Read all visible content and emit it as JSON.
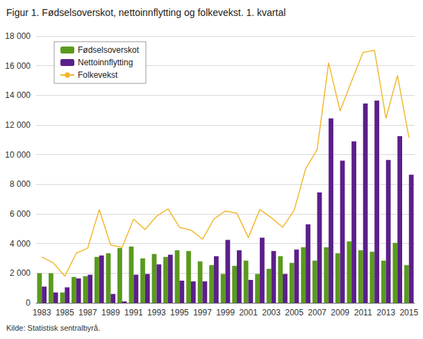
{
  "chart_data": {
    "type": "bar",
    "title": "Figur 1. Fødselsoverskot, nettoinnflytting og folkevekst. 1. kvartal",
    "source": "Kilde: Statistisk sentralbyrå.",
    "categories": [
      "1983",
      null,
      "1985",
      null,
      "1987",
      null,
      "1989",
      null,
      "1991",
      null,
      "1993",
      null,
      "1995",
      null,
      "1997",
      null,
      "1999",
      null,
      "2001",
      null,
      "2003",
      null,
      "2005",
      null,
      "2007",
      null,
      "2009",
      null,
      "2011",
      null,
      "2013",
      null,
      "2015"
    ],
    "series": [
      {
        "name": "Fødselsoverskot",
        "type": "bar",
        "color": "#5a9a1e",
        "values": [
          2000,
          2000,
          700,
          1750,
          1800,
          3100,
          3350,
          3700,
          3800,
          3000,
          3300,
          3100,
          3550,
          3500,
          2800,
          2550,
          1950,
          2500,
          2850,
          1950,
          2300,
          3150,
          2700,
          3750,
          2850,
          3750,
          3350,
          4150,
          3550,
          3450,
          2850,
          4050,
          2550
        ]
      },
      {
        "name": "Nettoinnflytting",
        "type": "bar",
        "color": "#5b1f8a",
        "values": [
          1100,
          700,
          1050,
          1650,
          1900,
          3200,
          600,
          100,
          1900,
          1950,
          2600,
          3250,
          1500,
          1450,
          1450,
          3150,
          4250,
          3550,
          1550,
          4400,
          3500,
          1950,
          3600,
          5300,
          7450,
          12450,
          9600,
          10900,
          13450,
          13650,
          9650,
          11250,
          8650
        ]
      },
      {
        "name": "Folkevekst",
        "type": "line",
        "color": "#f1b82d",
        "values": [
          3100,
          2700,
          1800,
          3350,
          3700,
          6300,
          3900,
          3750,
          5650,
          4950,
          5850,
          6350,
          5100,
          4900,
          4300,
          5650,
          6200,
          6050,
          4400,
          6300,
          5750,
          5100,
          6250,
          9050,
          10350,
          16200,
          12950,
          14950,
          16900,
          17050,
          12450,
          15350,
          11150
        ]
      }
    ],
    "ylim": [
      0,
      18000
    ],
    "yticks": [
      0,
      {
        "value": 2000,
        "label": "2 000"
      },
      {
        "value": 4000,
        "label": "4 000"
      },
      {
        "value": 6000,
        "label": "6 000"
      },
      {
        "value": 8000,
        "label": "8 000"
      },
      {
        "value": 10000,
        "label": "10 000"
      },
      {
        "value": 12000,
        "label": "12 000"
      },
      {
        "value": 14000,
        "label": "14 000"
      },
      {
        "value": 16000,
        "label": "16 000"
      },
      {
        "value": 18000,
        "label": "18 000"
      }
    ],
    "grid": true,
    "legend": "top-left"
  }
}
